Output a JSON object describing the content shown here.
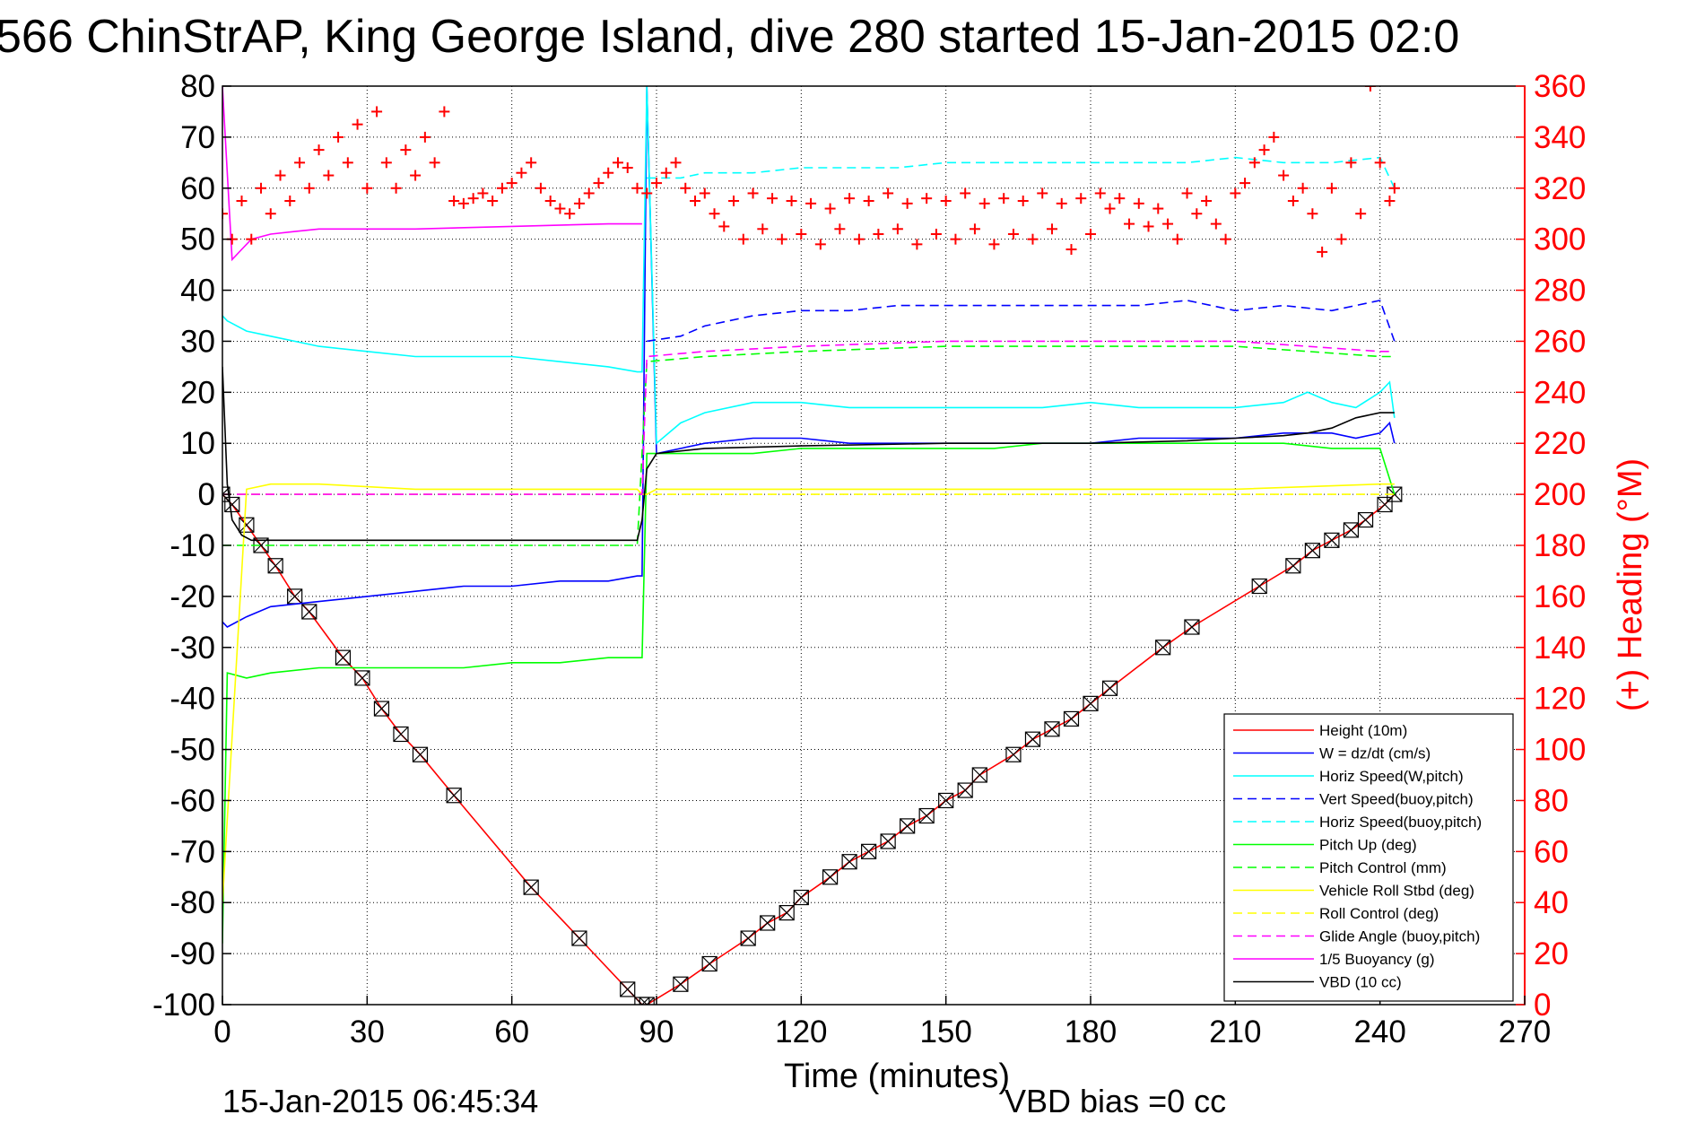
{
  "title": "566 ChinStrAP, King George Island, dive 280 started 15-Jan-2015 02:0",
  "footer_left": "15-Jan-2015 06:45:34",
  "footer_right": "VBD bias =0 cc",
  "chart_data": {
    "type": "line",
    "xlabel": "Time (minutes)",
    "ylabel_right": "(+) Heading (°M)",
    "xlim": [
      0,
      270
    ],
    "ylim": [
      -100,
      80
    ],
    "ylim_right": [
      0,
      360
    ],
    "x_ticks": [
      0,
      30,
      60,
      90,
      120,
      150,
      180,
      210,
      240,
      270
    ],
    "y_ticks": [
      80,
      70,
      60,
      50,
      40,
      30,
      20,
      10,
      0,
      -10,
      -20,
      -30,
      -40,
      -50,
      -60,
      -70,
      -80,
      -90,
      -100
    ],
    "y_ticks_right": [
      360,
      340,
      320,
      300,
      280,
      260,
      240,
      220,
      200,
      180,
      160,
      140,
      120,
      100,
      80,
      60,
      40,
      20,
      0
    ],
    "grid": true,
    "legend_position": "bottom-right",
    "series": [
      {
        "name": "Height (10m)",
        "color": "#ff0000",
        "style": "solid",
        "marker": "x-box",
        "x": [
          0,
          2,
          5,
          8,
          11,
          15,
          18,
          25,
          29,
          33,
          37,
          41,
          48,
          64,
          74,
          84,
          87,
          88,
          95,
          101,
          109,
          113,
          117,
          120,
          126,
          130,
          134,
          138,
          142,
          146,
          150,
          154,
          157,
          164,
          168,
          172,
          176,
          180,
          184,
          195,
          201,
          215,
          222,
          226,
          230,
          234,
          237,
          241,
          243
        ],
        "y": [
          0,
          -2,
          -6,
          -10,
          -14,
          -20,
          -23,
          -32,
          -36,
          -42,
          -47,
          -51,
          -59,
          -77,
          -87,
          -97,
          -100,
          -100,
          -96,
          -92,
          -87,
          -84,
          -82,
          -79,
          -75,
          -72,
          -70,
          -68,
          -65,
          -63,
          -60,
          -58,
          -55,
          -51,
          -48,
          -46,
          -44,
          -41,
          -38,
          -30,
          -26,
          -18,
          -14,
          -11,
          -9,
          -7,
          -5,
          -2,
          0
        ]
      },
      {
        "name": "W = dz/dt (cm/s)",
        "color": "#0000ff",
        "style": "solid",
        "x": [
          0,
          1,
          5,
          10,
          20,
          30,
          40,
          50,
          60,
          70,
          80,
          86,
          87,
          88,
          90,
          100,
          110,
          120,
          130,
          140,
          150,
          160,
          170,
          180,
          190,
          200,
          210,
          220,
          230,
          235,
          240,
          242,
          243
        ],
        "y": [
          -25,
          -26,
          -24,
          -22,
          -21,
          -20,
          -19,
          -18,
          -18,
          -17,
          -17,
          -16,
          -16,
          80,
          8,
          10,
          11,
          11,
          10,
          10,
          10,
          10,
          10,
          10,
          11,
          11,
          11,
          12,
          12,
          11,
          12,
          14,
          10
        ]
      },
      {
        "name": "Horiz Speed(W,pitch)",
        "color": "#00ffff",
        "style": "solid",
        "x": [
          0,
          1,
          5,
          10,
          20,
          30,
          40,
          50,
          60,
          70,
          80,
          86,
          87,
          88,
          90,
          95,
          100,
          110,
          120,
          130,
          140,
          150,
          160,
          170,
          180,
          190,
          200,
          210,
          220,
          225,
          230,
          235,
          240,
          242,
          243
        ],
        "y": [
          35,
          34,
          32,
          31,
          29,
          28,
          27,
          27,
          27,
          26,
          25,
          24,
          24,
          80,
          10,
          14,
          16,
          18,
          18,
          17,
          17,
          17,
          17,
          17,
          18,
          17,
          17,
          17,
          18,
          20,
          18,
          17,
          20,
          22,
          15
        ]
      },
      {
        "name": "Vert Speed(buoy,pitch)",
        "color": "#0000ff",
        "style": "dashed",
        "x": [
          88,
          95,
          100,
          110,
          120,
          130,
          140,
          150,
          160,
          170,
          180,
          190,
          200,
          210,
          220,
          230,
          240,
          243
        ],
        "y": [
          30,
          31,
          33,
          35,
          36,
          36,
          37,
          37,
          37,
          37,
          37,
          37,
          38,
          36,
          37,
          36,
          38,
          30
        ]
      },
      {
        "name": "Horiz Speed(buoy,pitch)",
        "color": "#00ffff",
        "style": "dashed",
        "x": [
          88,
          95,
          100,
          110,
          120,
          130,
          140,
          150,
          160,
          170,
          180,
          190,
          200,
          210,
          220,
          230,
          240,
          243
        ],
        "y": [
          62,
          62,
          63,
          63,
          64,
          64,
          64,
          65,
          65,
          65,
          65,
          65,
          65,
          66,
          65,
          65,
          66,
          60
        ]
      },
      {
        "name": "Pitch Up (deg)",
        "color": "#00ff00",
        "style": "solid",
        "x": [
          0,
          1,
          5,
          10,
          20,
          30,
          40,
          50,
          60,
          70,
          80,
          86,
          87,
          88,
          90,
          100,
          110,
          120,
          130,
          140,
          150,
          160,
          170,
          180,
          190,
          200,
          210,
          220,
          230,
          240,
          243
        ],
        "y": [
          -88,
          -35,
          -36,
          -35,
          -34,
          -34,
          -34,
          -34,
          -33,
          -33,
          -32,
          -32,
          -32,
          8,
          8,
          8,
          8,
          9,
          9,
          9,
          9,
          9,
          10,
          10,
          10,
          10,
          10,
          10,
          9,
          9,
          0
        ]
      },
      {
        "name": "Pitch Control (mm)",
        "color": "#00ff00",
        "style": "dashed",
        "x": [
          0,
          10,
          40,
          86,
          88,
          100,
          120,
          150,
          180,
          210,
          240,
          243
        ],
        "y": [
          -10,
          -10,
          -10,
          -10,
          26,
          27,
          28,
          29,
          29,
          29,
          27,
          27
        ]
      },
      {
        "name": "Vehicle Roll Stbd (deg)",
        "color": "#ffff00",
        "style": "solid",
        "x": [
          0,
          5,
          10,
          20,
          40,
          60,
          80,
          86,
          87,
          88,
          90,
          100,
          120,
          150,
          180,
          210,
          240,
          243
        ],
        "y": [
          -80,
          1,
          2,
          2,
          1,
          1,
          1,
          1,
          0,
          0,
          1,
          1,
          1,
          1,
          1,
          1,
          2,
          2
        ]
      },
      {
        "name": "Roll Control (deg)",
        "color": "#ffff00",
        "style": "dashed",
        "x": [
          0,
          30,
          60,
          87,
          88,
          120,
          150,
          180,
          210,
          240,
          243
        ],
        "y": [
          0,
          0,
          0,
          0,
          0,
          0,
          0,
          0,
          0,
          0,
          0
        ]
      },
      {
        "name": "Glide Angle (buoy,pitch)",
        "color": "#ff00ff",
        "style": "dashed",
        "x": [
          0,
          30,
          60,
          87,
          88,
          100,
          120,
          150,
          180,
          210,
          240,
          243
        ],
        "y": [
          0,
          0,
          0,
          0,
          27,
          28,
          29,
          30,
          30,
          30,
          28,
          28
        ]
      },
      {
        "name": "1/5 Buoyancy (g)",
        "color": "#ff00ff",
        "style": "solid",
        "x": [
          0,
          2,
          4,
          6,
          10,
          15,
          20,
          40,
          60,
          80,
          86,
          87
        ],
        "y": [
          80,
          46,
          48,
          50,
          51,
          51.5,
          52,
          52,
          52.5,
          53,
          53,
          53
        ]
      },
      {
        "name": "VBD (10 cc)",
        "color": "#000000",
        "style": "solid",
        "x": [
          0,
          1,
          2,
          4,
          6,
          8,
          86,
          87,
          88,
          90,
          100,
          120,
          150,
          180,
          200,
          210,
          220,
          225,
          230,
          235,
          240,
          243
        ],
        "y": [
          25,
          2,
          -5,
          -8,
          -9,
          -9,
          -9,
          -5,
          5,
          8,
          9,
          9.5,
          10,
          10,
          10.5,
          11,
          11.5,
          12,
          13,
          15,
          16,
          16
        ]
      },
      {
        "name": "Heading",
        "axis": "right",
        "color": "#ff0000",
        "style": "markers",
        "marker": "+",
        "x": [
          0,
          2,
          4,
          6,
          8,
          10,
          12,
          14,
          16,
          18,
          20,
          22,
          24,
          26,
          28,
          30,
          32,
          34,
          36,
          38,
          40,
          42,
          44,
          46,
          48,
          50,
          52,
          54,
          56,
          58,
          60,
          62,
          64,
          66,
          68,
          70,
          72,
          74,
          76,
          78,
          80,
          82,
          84,
          86,
          88,
          90,
          92,
          94,
          96,
          98,
          100,
          102,
          104,
          106,
          108,
          110,
          112,
          114,
          116,
          118,
          120,
          122,
          124,
          126,
          128,
          130,
          132,
          134,
          136,
          138,
          140,
          142,
          144,
          146,
          148,
          150,
          152,
          154,
          156,
          158,
          160,
          162,
          164,
          166,
          168,
          170,
          172,
          174,
          176,
          178,
          180,
          182,
          184,
          186,
          188,
          190,
          192,
          194,
          196,
          198,
          200,
          202,
          204,
          206,
          208,
          210,
          212,
          214,
          216,
          218,
          220,
          222,
          224,
          226,
          228,
          230,
          232,
          234,
          236,
          238,
          240,
          242,
          243
        ],
        "y": [
          310,
          300,
          315,
          300,
          320,
          310,
          325,
          315,
          330,
          320,
          335,
          325,
          340,
          330,
          345,
          320,
          350,
          330,
          320,
          335,
          325,
          340,
          330,
          350,
          315,
          314,
          316,
          318,
          315,
          320,
          322,
          326,
          330,
          320,
          315,
          312,
          310,
          314,
          318,
          322,
          326,
          330,
          328,
          320,
          318,
          322,
          326,
          330,
          320,
          315,
          318,
          310,
          305,
          315,
          300,
          318,
          304,
          316,
          300,
          315,
          302,
          314,
          298,
          312,
          304,
          316,
          300,
          315,
          302,
          318,
          304,
          314,
          298,
          316,
          302,
          315,
          300,
          318,
          304,
          314,
          298,
          316,
          302,
          315,
          300,
          318,
          304,
          314,
          296,
          316,
          302,
          318,
          312,
          316,
          306,
          314,
          305,
          312,
          306,
          300,
          318,
          310,
          315,
          306,
          300,
          318,
          322,
          330,
          335,
          340,
          325,
          315,
          320,
          310,
          295,
          320,
          300,
          330,
          310,
          360,
          330,
          315,
          320
        ]
      }
    ]
  }
}
